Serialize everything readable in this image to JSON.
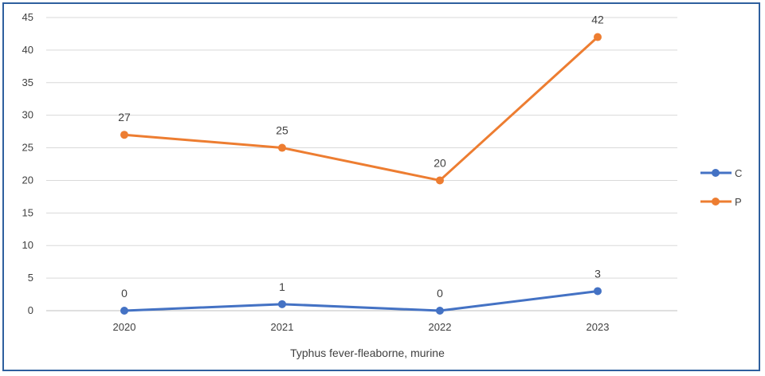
{
  "chart_data": {
    "type": "line",
    "categories": [
      "2020",
      "2021",
      "2022",
      "2023"
    ],
    "series": [
      {
        "name": "C",
        "values": [
          0,
          1,
          0,
          3
        ],
        "color": "#4472c4"
      },
      {
        "name": "P",
        "values": [
          27,
          25,
          20,
          42
        ],
        "color": "#ed7d31"
      }
    ],
    "xlabel": "Typhus fever-fleaborne, murine",
    "ylabel": "",
    "ylim": [
      0,
      45
    ],
    "yticks": [
      0,
      5,
      10,
      15,
      20,
      25,
      30,
      35,
      40,
      45
    ],
    "grid": true,
    "legend": "right"
  }
}
